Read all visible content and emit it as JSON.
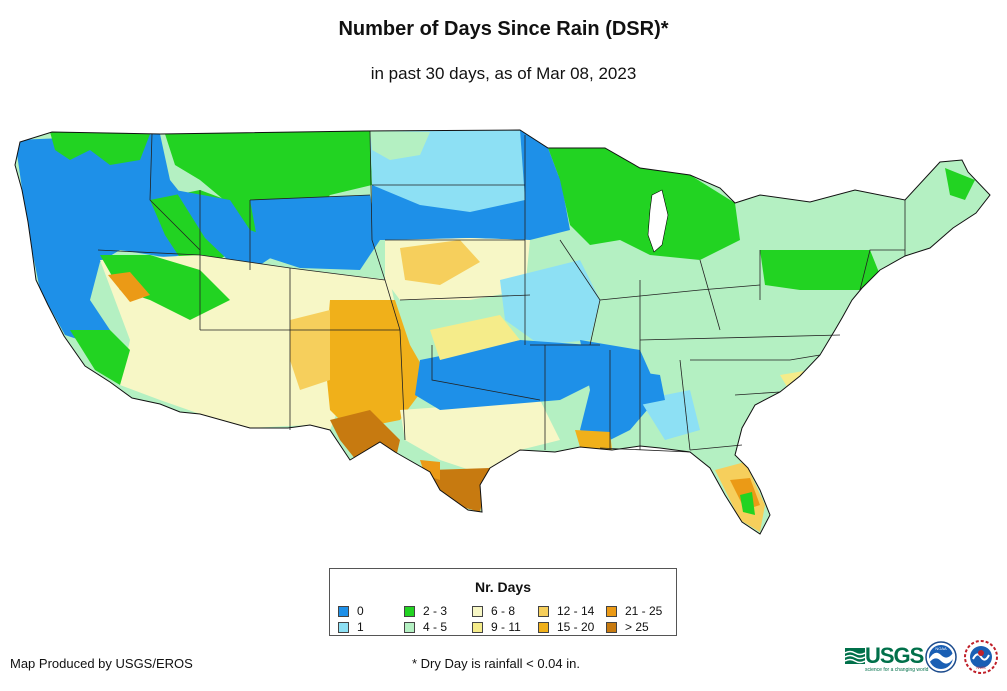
{
  "header": {
    "title": "Number of Days Since Rain (DSR)*",
    "subtitle": "in past 30 days, as of Mar 08, 2023"
  },
  "legend": {
    "title": "Nr. Days",
    "items": [
      {
        "label": "0",
        "color": "#1e90e8"
      },
      {
        "label": "1",
        "color": "#8de0f4"
      },
      {
        "label": "2 - 3",
        "color": "#22d322"
      },
      {
        "label": "4 - 5",
        "color": "#b4f0c2"
      },
      {
        "label": "6 - 8",
        "color": "#f7f7c6"
      },
      {
        "label": "9 - 11",
        "color": "#f5ec8a"
      },
      {
        "label": "12 - 14",
        "color": "#f6cf5c"
      },
      {
        "label": "15 - 20",
        "color": "#f0b01a"
      },
      {
        "label": "21 - 25",
        "color": "#eb9a16"
      },
      {
        "label": "> 25",
        "color": "#c77a10"
      }
    ]
  },
  "footer": {
    "credit": "Map Produced by USGS/EROS",
    "footnote": "* Dry Day is rainfall < 0.04 in.",
    "usgs_logo": "USGS",
    "usgs_tagline": "science for a changing world",
    "noaa_logo": "NOAA",
    "nws_logo": "NWS"
  }
}
